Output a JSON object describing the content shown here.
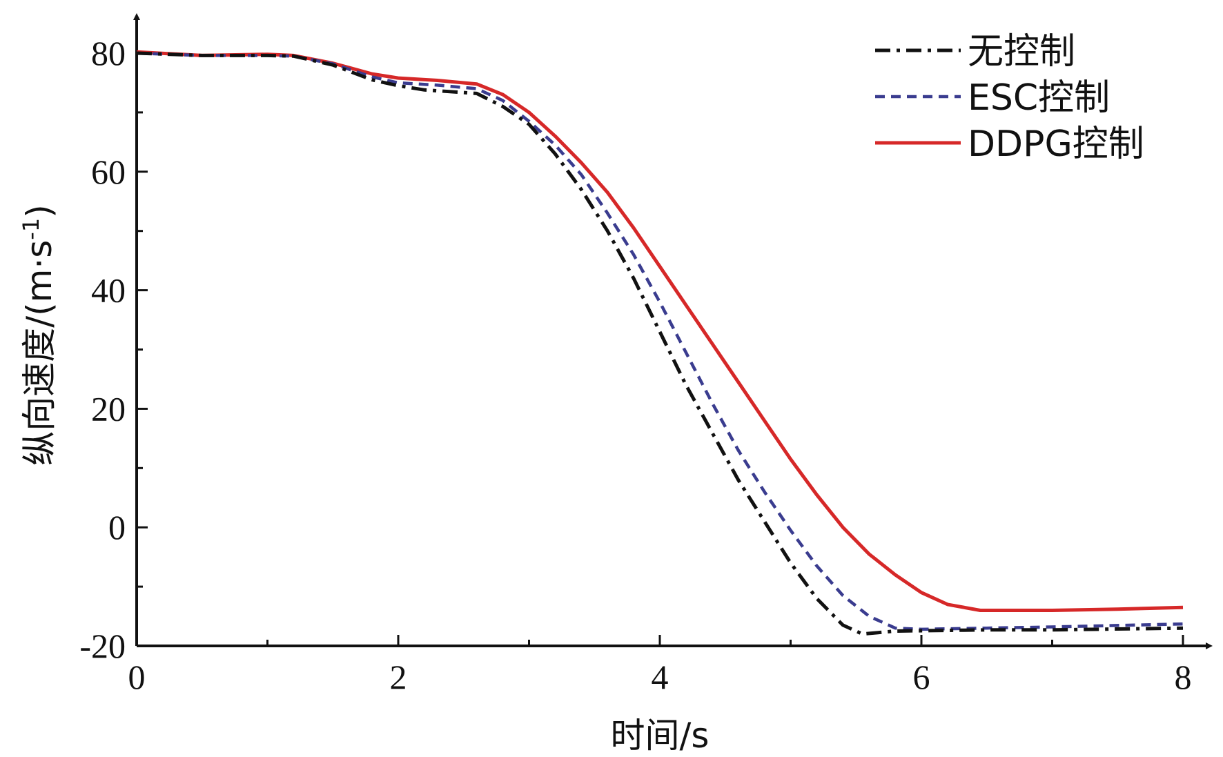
{
  "chart_data": {
    "type": "line",
    "title": "",
    "xlabel": "时间/s",
    "ylabel": "纵向速度/(m·s",
    "ylabel_superscript": "-1",
    "ylabel_suffix": ")",
    "xlim": [
      0,
      8
    ],
    "ylim": [
      -20,
      85
    ],
    "xticks": [
      0,
      2,
      4,
      6,
      8
    ],
    "xtick_labels": [
      "0",
      "2",
      "4",
      "6",
      "8"
    ],
    "yticks": [
      -20,
      0,
      20,
      40,
      60,
      80
    ],
    "ytick_labels": [
      "-20",
      "0",
      "20",
      "40",
      "60",
      "80"
    ],
    "grid": false,
    "legend_position": "top-right",
    "series": [
      {
        "name": "无控制",
        "color": "#111111",
        "dash": "dashdot",
        "points": [
          [
            0,
            80
          ],
          [
            0.5,
            79.6
          ],
          [
            1,
            79.6
          ],
          [
            1.2,
            79.5
          ],
          [
            1.5,
            78
          ],
          [
            1.8,
            75.5
          ],
          [
            2,
            74.5
          ],
          [
            2.2,
            73.8
          ],
          [
            2.6,
            73.2
          ],
          [
            2.8,
            71
          ],
          [
            3,
            68
          ],
          [
            3.2,
            63
          ],
          [
            3.4,
            57
          ],
          [
            3.6,
            50
          ],
          [
            3.8,
            42
          ],
          [
            4,
            33
          ],
          [
            4.2,
            24
          ],
          [
            4.4,
            16
          ],
          [
            4.6,
            8
          ],
          [
            4.8,
            1
          ],
          [
            5,
            -6
          ],
          [
            5.2,
            -12
          ],
          [
            5.4,
            -16.5
          ],
          [
            5.55,
            -18
          ],
          [
            5.8,
            -17.5
          ],
          [
            6.5,
            -17.3
          ],
          [
            7,
            -17.3
          ],
          [
            8,
            -17
          ]
        ]
      },
      {
        "name": "ESC控制",
        "color": "#3a3c8f",
        "dash": "dashed",
        "points": [
          [
            0,
            80
          ],
          [
            0.5,
            79.6
          ],
          [
            1,
            79.6
          ],
          [
            1.2,
            79.5
          ],
          [
            1.5,
            78.2
          ],
          [
            1.8,
            76
          ],
          [
            2,
            75
          ],
          [
            2.3,
            74.6
          ],
          [
            2.6,
            74
          ],
          [
            2.8,
            72
          ],
          [
            3,
            68.5
          ],
          [
            3.2,
            64.5
          ],
          [
            3.4,
            59.5
          ],
          [
            3.6,
            53
          ],
          [
            3.8,
            46
          ],
          [
            4,
            38
          ],
          [
            4.2,
            29.5
          ],
          [
            4.4,
            21
          ],
          [
            4.6,
            13
          ],
          [
            4.8,
            6
          ],
          [
            5,
            -0.5
          ],
          [
            5.2,
            -6.5
          ],
          [
            5.4,
            -11.5
          ],
          [
            5.6,
            -15
          ],
          [
            5.8,
            -17
          ],
          [
            6,
            -17.2
          ],
          [
            6.5,
            -17
          ],
          [
            7,
            -16.8
          ],
          [
            8,
            -16.3
          ]
        ]
      },
      {
        "name": "DDPG控制",
        "color": "#d62828",
        "dash": "solid",
        "points": [
          [
            0,
            80.2
          ],
          [
            0.5,
            79.6
          ],
          [
            1,
            79.8
          ],
          [
            1.2,
            79.6
          ],
          [
            1.5,
            78.3
          ],
          [
            1.8,
            76.5
          ],
          [
            2,
            75.8
          ],
          [
            2.3,
            75.4
          ],
          [
            2.6,
            74.8
          ],
          [
            2.8,
            73
          ],
          [
            3,
            70
          ],
          [
            3.2,
            66
          ],
          [
            3.4,
            61.5
          ],
          [
            3.6,
            56.5
          ],
          [
            3.8,
            50.5
          ],
          [
            4,
            44
          ],
          [
            4.2,
            37.5
          ],
          [
            4.4,
            31
          ],
          [
            4.6,
            24.5
          ],
          [
            4.8,
            18
          ],
          [
            5,
            11.5
          ],
          [
            5.2,
            5.5
          ],
          [
            5.4,
            0
          ],
          [
            5.6,
            -4.5
          ],
          [
            5.8,
            -8
          ],
          [
            6,
            -11
          ],
          [
            6.2,
            -13
          ],
          [
            6.45,
            -14
          ],
          [
            7,
            -14
          ],
          [
            7.5,
            -13.8
          ],
          [
            8,
            -13.5
          ]
        ]
      }
    ]
  }
}
